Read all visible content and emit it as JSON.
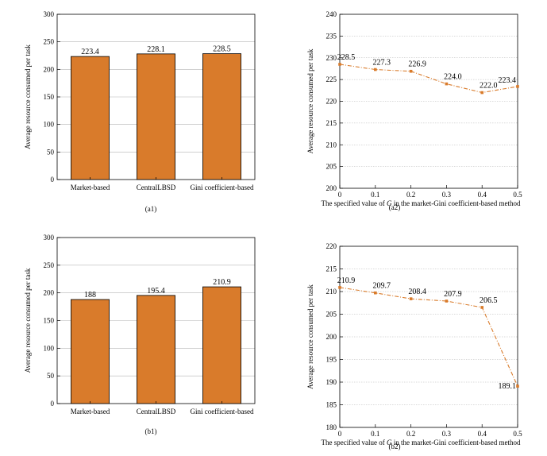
{
  "chart_data": [
    {
      "id": "a1",
      "type": "bar",
      "caption": "(a1)",
      "categories": [
        "Market-based",
        "CentralLBSD",
        "Gini coefficient-based"
      ],
      "values": [
        223.4,
        228.1,
        228.5
      ],
      "value_labels": [
        "223.4",
        "228.1",
        "228.5"
      ],
      "ylabel": "Average resource consumed per task",
      "xlabel": "",
      "ylim": [
        0,
        300
      ],
      "yticks": [
        0,
        50,
        100,
        150,
        200,
        250,
        300
      ],
      "grid": "horizontal",
      "bar_color": "#d97b2b"
    },
    {
      "id": "a2",
      "type": "line",
      "caption": "(a2)",
      "x": [
        0,
        0.1,
        0.2,
        0.3,
        0.4,
        0.5
      ],
      "values": [
        228.5,
        227.3,
        226.9,
        224.0,
        222.0,
        223.4
      ],
      "value_labels": [
        "228.5",
        "227.3",
        "226.9",
        "224.0",
        "222.0",
        "223.4"
      ],
      "ylabel": "Average resource consumed per task",
      "xlabel_pre": "The specified value of ",
      "xlabel_var": "G",
      "xlabel_post": " in the market-Gini coefficient-based method",
      "xlim": [
        0,
        0.5
      ],
      "xticks": [
        "0",
        "0.1",
        "0.2",
        "0.3",
        "0.4",
        "0.5"
      ],
      "ylim": [
        200,
        240
      ],
      "yticks": [
        200,
        205,
        210,
        215,
        220,
        225,
        230,
        235,
        240
      ],
      "grid": "horizontal",
      "line_color": "#d97b2b"
    },
    {
      "id": "b1",
      "type": "bar",
      "caption": "(b1)",
      "categories": [
        "Market-based",
        "CentralLBSD",
        "Gini coefficient-based"
      ],
      "values": [
        188,
        195.4,
        210.9
      ],
      "value_labels": [
        "188",
        "195.4",
        "210.9"
      ],
      "ylabel": "Average resource consumed per task",
      "xlabel": "",
      "ylim": [
        0,
        300
      ],
      "yticks": [
        0,
        50,
        100,
        150,
        200,
        250,
        300
      ],
      "grid": "horizontal",
      "bar_color": "#d97b2b"
    },
    {
      "id": "b2",
      "type": "line",
      "caption": "(b2)",
      "x": [
        0,
        0.1,
        0.2,
        0.3,
        0.4,
        0.5
      ],
      "values": [
        210.9,
        209.7,
        208.4,
        207.9,
        206.5,
        189.1
      ],
      "value_labels": [
        "210.9",
        "209.7",
        "208.4",
        "207.9",
        "206.5",
        "189.1"
      ],
      "ylabel": "Average resource consumed per task",
      "xlabel_pre": "The specified value of ",
      "xlabel_var": "G",
      "xlabel_post": " in the market-Gini coefficient-based method",
      "xlim": [
        0,
        0.5
      ],
      "xticks": [
        "0",
        "0.1",
        "0.2",
        "0.3",
        "0.4",
        "0.5"
      ],
      "ylim": [
        180,
        220
      ],
      "yticks": [
        180,
        185,
        190,
        195,
        200,
        205,
        210,
        215,
        220
      ],
      "grid": "horizontal",
      "line_color": "#d97b2b"
    }
  ]
}
